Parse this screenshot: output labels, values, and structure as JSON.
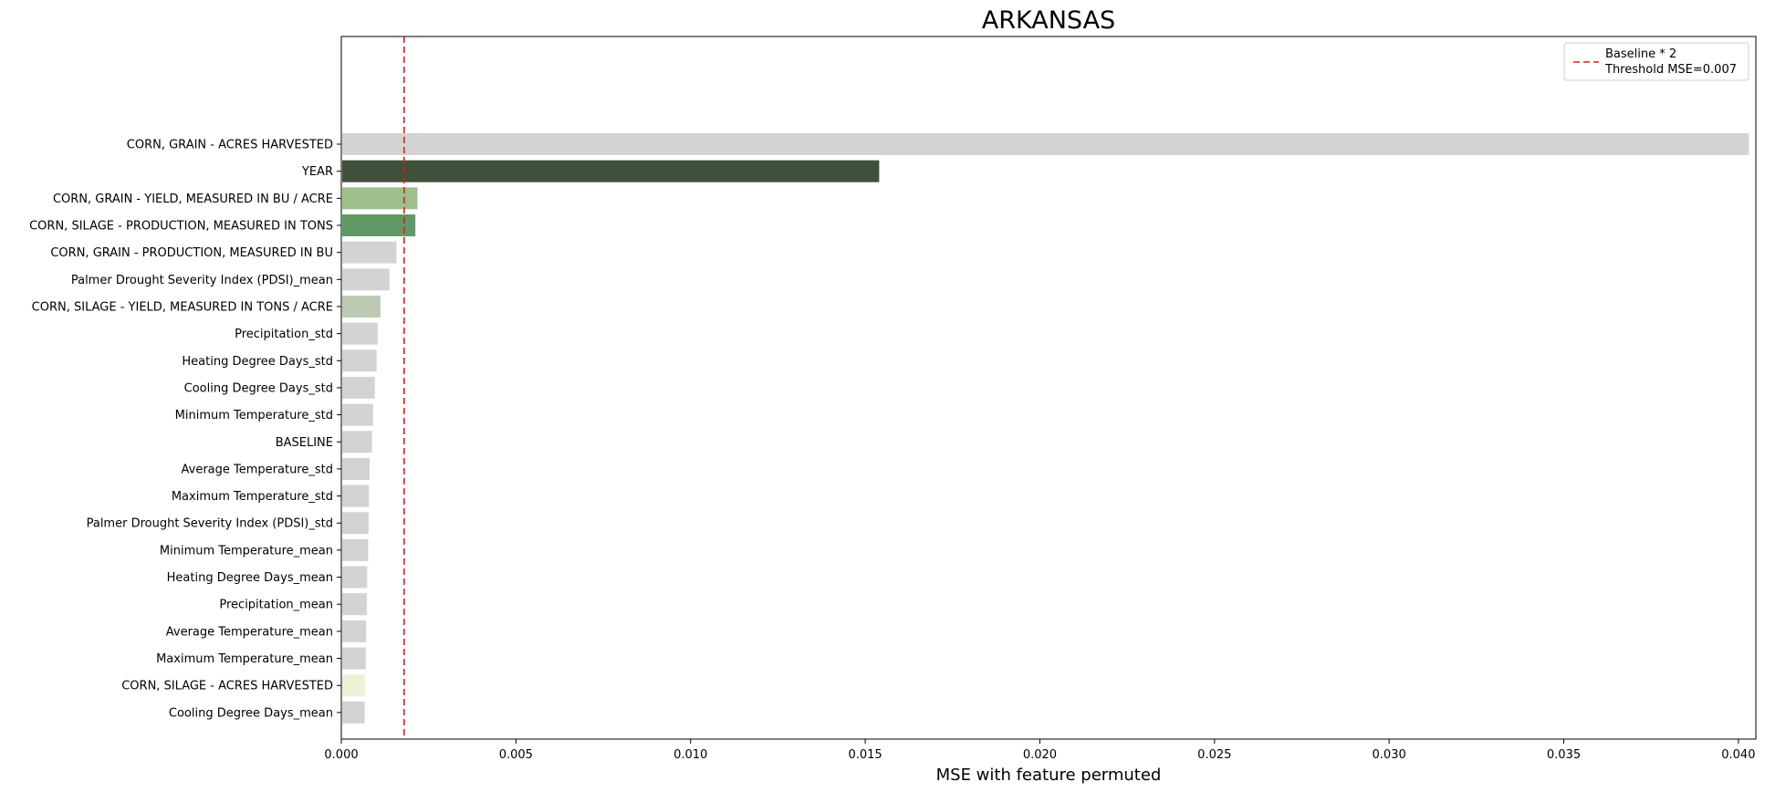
{
  "chart_data": {
    "type": "bar",
    "orientation": "horizontal",
    "title": "ARKANSAS",
    "xlabel": "MSE with feature permuted",
    "ylabel": "",
    "xlim": [
      0,
      0.0405
    ],
    "xticks": [
      "0.000",
      "0.005",
      "0.010",
      "0.015",
      "0.020",
      "0.025",
      "0.030",
      "0.035",
      "0.040"
    ],
    "xtick_values": [
      0,
      0.005,
      0.01,
      0.015,
      0.02,
      0.025,
      0.03,
      0.035,
      0.04
    ],
    "grid": false,
    "legend_position": "top-right",
    "legend": {
      "line1": "Baseline * 2",
      "line2": "Threshold MSE=0.007"
    },
    "reference_line": {
      "x": 0.0018,
      "style": "dashed",
      "color": "#e31a1c"
    },
    "categories": [
      "CORN, GRAIN - ACRES HARVESTED",
      "YEAR",
      "CORN, GRAIN - YIELD, MEASURED IN BU / ACRE",
      "CORN, SILAGE - PRODUCTION, MEASURED IN TONS",
      "CORN, GRAIN - PRODUCTION, MEASURED IN BU",
      "Palmer Drought Severity Index (PDSI)_mean",
      "CORN, SILAGE - YIELD, MEASURED IN TONS / ACRE",
      "Precipitation_std",
      "Heating Degree Days_std",
      "Cooling Degree Days_std",
      "Minimum Temperature_std",
      "BASELINE",
      "Average Temperature_std",
      "Maximum Temperature_std",
      "Palmer Drought Severity Index (PDSI)_std",
      "Minimum Temperature_mean",
      "Heating Degree Days_mean",
      "Precipitation_mean",
      "Average Temperature_mean",
      "Maximum Temperature_mean",
      "CORN, SILAGE - ACRES HARVESTED",
      "Cooling Degree Days_mean"
    ],
    "values": [
      0.0403,
      0.0154,
      0.00218,
      0.00212,
      0.00158,
      0.00138,
      0.00112,
      0.00104,
      0.00101,
      0.00096,
      0.00091,
      0.00088,
      0.00081,
      0.00079,
      0.00078,
      0.00077,
      0.00074,
      0.00073,
      0.00071,
      0.0007,
      0.00068,
      0.00067
    ],
    "colors": [
      "#d3d3d3",
      "#3f513b",
      "#9dc08b",
      "#609966",
      "#d3d3d3",
      "#d3d3d3",
      "#bccab3",
      "#d3d3d3",
      "#d3d3d3",
      "#d3d3d3",
      "#d3d3d3",
      "#d3d3d3",
      "#d3d3d3",
      "#d3d3d3",
      "#d3d3d3",
      "#d3d3d3",
      "#d3d3d3",
      "#d3d3d3",
      "#d3d3d3",
      "#d3d3d3",
      "#edf1d6",
      "#d3d3d3"
    ]
  }
}
